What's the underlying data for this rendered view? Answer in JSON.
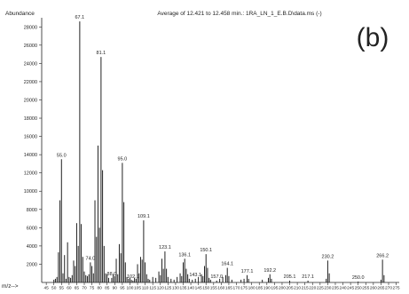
{
  "chart_data": {
    "type": "bar",
    "title": "Average of 12.421 to 12.458 min.: 1RA_LN_1_E.B.D\\data.ms (-)",
    "panel_label": "(b)",
    "ylabel": "Abundance",
    "xlabel": "m/z-->",
    "xlim": [
      42,
      277
    ],
    "ylim": [
      0,
      29000
    ],
    "x_ticks": [
      45,
      50,
      55,
      60,
      65,
      70,
      75,
      80,
      85,
      90,
      95,
      100,
      105,
      110,
      115,
      120,
      125,
      130,
      135,
      140,
      145,
      150,
      155,
      160,
      165,
      170,
      175,
      180,
      185,
      190,
      195,
      200,
      205,
      210,
      215,
      220,
      225,
      230,
      235,
      240,
      245,
      250,
      255,
      260,
      265,
      270,
      275
    ],
    "y_ticks": [
      2000,
      4000,
      6000,
      8000,
      10000,
      12000,
      14000,
      16000,
      18000,
      20000,
      22000,
      24000,
      26000,
      28000
    ],
    "peaks": [
      {
        "mz": 50,
        "abundance": 300
      },
      {
        "mz": 51,
        "abundance": 400
      },
      {
        "mz": 52,
        "abundance": 600
      },
      {
        "mz": 53,
        "abundance": 3300
      },
      {
        "mz": 54,
        "abundance": 9000
      },
      {
        "mz": 55,
        "abundance": 13500
      },
      {
        "mz": 56,
        "abundance": 1000
      },
      {
        "mz": 57,
        "abundance": 3000
      },
      {
        "mz": 58,
        "abundance": 400
      },
      {
        "mz": 59,
        "abundance": 4400
      },
      {
        "mz": 60,
        "abundance": 600
      },
      {
        "mz": 61,
        "abundance": 500
      },
      {
        "mz": 62,
        "abundance": 800
      },
      {
        "mz": 63,
        "abundance": 2400
      },
      {
        "mz": 64,
        "abundance": 1800
      },
      {
        "mz": 65,
        "abundance": 6500
      },
      {
        "mz": 66,
        "abundance": 4000
      },
      {
        "mz": 67,
        "abundance": 28600
      },
      {
        "mz": 68,
        "abundance": 6400
      },
      {
        "mz": 69,
        "abundance": 2800
      },
      {
        "mz": 70,
        "abundance": 1200
      },
      {
        "mz": 71,
        "abundance": 800
      },
      {
        "mz": 72,
        "abundance": 700
      },
      {
        "mz": 73,
        "abundance": 900
      },
      {
        "mz": 74,
        "abundance": 2200
      },
      {
        "mz": 75,
        "abundance": 1800
      },
      {
        "mz": 76,
        "abundance": 1000
      },
      {
        "mz": 77,
        "abundance": 9000
      },
      {
        "mz": 78,
        "abundance": 5000
      },
      {
        "mz": 79,
        "abundance": 15000
      },
      {
        "mz": 80,
        "abundance": 6000
      },
      {
        "mz": 81,
        "abundance": 24700
      },
      {
        "mz": 82,
        "abundance": 12300
      },
      {
        "mz": 83,
        "abundance": 4000
      },
      {
        "mz": 84,
        "abundance": 1000
      },
      {
        "mz": 85,
        "abundance": 900
      },
      {
        "mz": 86,
        "abundance": 500
      },
      {
        "mz": 88,
        "abundance": 500
      },
      {
        "mz": 89,
        "abundance": 900
      },
      {
        "mz": 90,
        "abundance": 700
      },
      {
        "mz": 91,
        "abundance": 2600
      },
      {
        "mz": 92,
        "abundance": 900
      },
      {
        "mz": 93,
        "abundance": 4200
      },
      {
        "mz": 94,
        "abundance": 3200
      },
      {
        "mz": 95,
        "abundance": 13100
      },
      {
        "mz": 96,
        "abundance": 8800
      },
      {
        "mz": 97,
        "abundance": 2200
      },
      {
        "mz": 98,
        "abundance": 600
      },
      {
        "mz": 99,
        "abundance": 400
      },
      {
        "mz": 100,
        "abundance": 500
      },
      {
        "mz": 101,
        "abundance": 300
      },
      {
        "mz": 102,
        "abundance": 200
      },
      {
        "mz": 103,
        "abundance": 500
      },
      {
        "mz": 104,
        "abundance": 400
      },
      {
        "mz": 105,
        "abundance": 2000
      },
      {
        "mz": 106,
        "abundance": 1000
      },
      {
        "mz": 107,
        "abundance": 2800
      },
      {
        "mz": 108,
        "abundance": 2500
      },
      {
        "mz": 109,
        "abundance": 6800
      },
      {
        "mz": 110,
        "abundance": 2200
      },
      {
        "mz": 111,
        "abundance": 900
      },
      {
        "mz": 112,
        "abundance": 400
      },
      {
        "mz": 113,
        "abundance": 300
      },
      {
        "mz": 115,
        "abundance": 600
      },
      {
        "mz": 117,
        "abundance": 500
      },
      {
        "mz": 119,
        "abundance": 1200
      },
      {
        "mz": 120,
        "abundance": 800
      },
      {
        "mz": 121,
        "abundance": 2600
      },
      {
        "mz": 122,
        "abundance": 1500
      },
      {
        "mz": 123,
        "abundance": 3400
      },
      {
        "mz": 124,
        "abundance": 1500
      },
      {
        "mz": 125,
        "abundance": 600
      },
      {
        "mz": 127,
        "abundance": 400
      },
      {
        "mz": 129,
        "abundance": 300
      },
      {
        "mz": 131,
        "abundance": 600
      },
      {
        "mz": 133,
        "abundance": 1000
      },
      {
        "mz": 134,
        "abundance": 700
      },
      {
        "mz": 135,
        "abundance": 2200
      },
      {
        "mz": 136,
        "abundance": 2600
      },
      {
        "mz": 137,
        "abundance": 1500
      },
      {
        "mz": 138,
        "abundance": 900
      },
      {
        "mz": 139,
        "abundance": 400
      },
      {
        "mz": 141,
        "abundance": 300
      },
      {
        "mz": 143,
        "abundance": 400
      },
      {
        "mz": 145,
        "abundance": 600
      },
      {
        "mz": 147,
        "abundance": 900
      },
      {
        "mz": 148,
        "abundance": 700
      },
      {
        "mz": 149,
        "abundance": 1800
      },
      {
        "mz": 150,
        "abundance": 3100
      },
      {
        "mz": 151,
        "abundance": 1600
      },
      {
        "mz": 152,
        "abundance": 500
      },
      {
        "mz": 153,
        "abundance": 300
      },
      {
        "mz": 157,
        "abundance": 200
      },
      {
        "mz": 159,
        "abundance": 400
      },
      {
        "mz": 161,
        "abundance": 600
      },
      {
        "mz": 163,
        "abundance": 800
      },
      {
        "mz": 164,
        "abundance": 1600
      },
      {
        "mz": 165,
        "abundance": 700
      },
      {
        "mz": 167,
        "abundance": 300
      },
      {
        "mz": 173,
        "abundance": 300
      },
      {
        "mz": 175,
        "abundance": 400
      },
      {
        "mz": 177,
        "abundance": 800
      },
      {
        "mz": 178,
        "abundance": 400
      },
      {
        "mz": 187,
        "abundance": 300
      },
      {
        "mz": 191,
        "abundance": 500
      },
      {
        "mz": 192,
        "abundance": 900
      },
      {
        "mz": 193,
        "abundance": 400
      },
      {
        "mz": 205,
        "abundance": 200
      },
      {
        "mz": 217,
        "abundance": 200
      },
      {
        "mz": 229,
        "abundance": 400
      },
      {
        "mz": 230,
        "abundance": 2400
      },
      {
        "mz": 231,
        "abundance": 1000
      },
      {
        "mz": 250,
        "abundance": 100
      },
      {
        "mz": 265,
        "abundance": 300
      },
      {
        "mz": 266,
        "abundance": 2500
      },
      {
        "mz": 267,
        "abundance": 800
      }
    ],
    "peak_labels": [
      {
        "mz": 55,
        "abundance": 13500,
        "text": "55.0"
      },
      {
        "mz": 67,
        "abundance": 28600,
        "text": "67.1"
      },
      {
        "mz": 74,
        "abundance": 2200,
        "text": "74.0"
      },
      {
        "mz": 81,
        "abundance": 24700,
        "text": "81.1"
      },
      {
        "mz": 88,
        "abundance": 500,
        "text": "88.0"
      },
      {
        "mz": 95,
        "abundance": 13100,
        "text": "95.0"
      },
      {
        "mz": 102,
        "abundance": 200,
        "text": "102.1"
      },
      {
        "mz": 109,
        "abundance": 6800,
        "text": "109.1"
      },
      {
        "mz": 123,
        "abundance": 3400,
        "text": "123.1"
      },
      {
        "mz": 136,
        "abundance": 2600,
        "text": "136.1"
      },
      {
        "mz": 143,
        "abundance": 400,
        "text": "143.1"
      },
      {
        "mz": 150,
        "abundance": 3100,
        "text": "150.1"
      },
      {
        "mz": 157,
        "abundance": 200,
        "text": "157.0"
      },
      {
        "mz": 164,
        "abundance": 1600,
        "text": "164.1"
      },
      {
        "mz": 177,
        "abundance": 800,
        "text": "177.1"
      },
      {
        "mz": 192,
        "abundance": 900,
        "text": "192.2"
      },
      {
        "mz": 205,
        "abundance": 200,
        "text": "205.1"
      },
      {
        "mz": 217,
        "abundance": 200,
        "text": "217.1"
      },
      {
        "mz": 230,
        "abundance": 2400,
        "text": "230.2"
      },
      {
        "mz": 250,
        "abundance": 100,
        "text": "250.0"
      },
      {
        "mz": 266,
        "abundance": 2500,
        "text": "266.2"
      }
    ],
    "grid": false,
    "legend": "none",
    "bar_color": "#222222"
  }
}
